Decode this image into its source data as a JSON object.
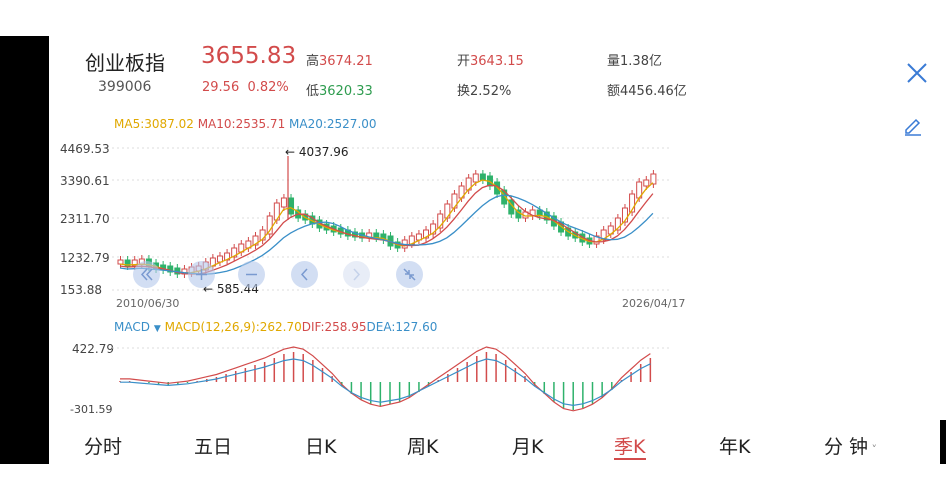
{
  "header": {
    "name": "创业板指",
    "code": "399006",
    "price": "3655.83",
    "change": "29.56",
    "change_pct": "0.82%",
    "high_label": "高",
    "high": "3674.21",
    "low_label": "低",
    "low": "3620.33",
    "open_label": "开",
    "open": "3643.15",
    "turnover_label": "换",
    "turnover": "2.52%",
    "volume_label": "量",
    "volume": "1.38亿",
    "amount_label": "额",
    "amount": "4456.46亿"
  },
  "ma_legend": {
    "ma5": "MA5:3087.02",
    "ma10": "MA10:2535.71",
    "ma20": "MA20:2527.00",
    "colors": {
      "ma5": "#e0a800",
      "ma10": "#d24b4b",
      "ma20": "#3a8fc8"
    }
  },
  "kline": {
    "y_labels": [
      "4469.53",
      "3390.61",
      "2311.70",
      "1232.79",
      "153.88"
    ],
    "max_label": "← 4037.96",
    "min_label": "← 585.44",
    "start_date": "2010/06/30",
    "end_date": "2026/04/17"
  },
  "macd_legend": {
    "title": "MACD",
    "params": "MACD(12,26,9):262.70",
    "dif": "DIF:258.95",
    "dea": "DEA:127.60"
  },
  "macd_axis": {
    "top": "422.79",
    "bottom": "-301.59"
  },
  "tabs": [
    "分时",
    "五日",
    "日K",
    "周K",
    "月K",
    "季K",
    "年K",
    "分 钟"
  ],
  "active_tab": "季K",
  "colors": {
    "up": "#d24b4b",
    "down": "#2eb26b",
    "accent": "#d24b4b",
    "close_icon": "#3a7bd5"
  }
}
